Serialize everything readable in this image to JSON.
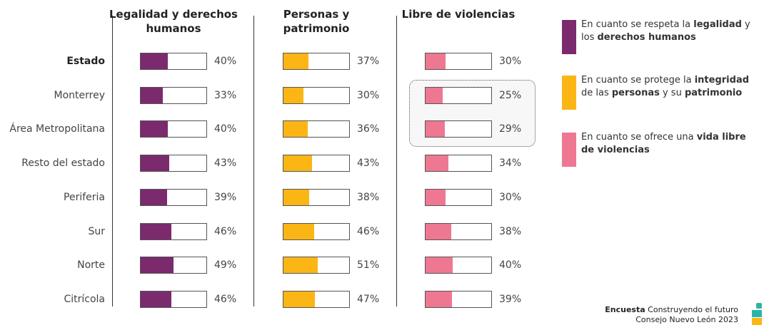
{
  "chart_data": {
    "type": "bar",
    "categories": [
      "Estado",
      "Monterrey",
      "Área Metropolitana",
      "Resto del estado",
      "Periferia",
      "Sur",
      "Norte",
      "Citrícola"
    ],
    "xlim": [
      0,
      100
    ],
    "series": [
      {
        "name": "Legalidad y derechos humanos",
        "color": "#7b2a6e",
        "values": [
          40,
          33,
          40,
          43,
          39,
          46,
          49,
          46
        ],
        "value_labels": [
          "40%",
          "33%",
          "40%",
          "43%",
          "39%",
          "46%",
          "49%",
          "46%"
        ]
      },
      {
        "name": "Personas y patrimonio",
        "color": "#fbb615",
        "values": [
          37,
          30,
          36,
          43,
          38,
          46,
          51,
          47
        ],
        "value_labels": [
          "37%",
          "30%",
          "36%",
          "43%",
          "38%",
          "46%",
          "51%",
          "47%"
        ]
      },
      {
        "name": "Libre de violencias",
        "color": "#ee7891",
        "values": [
          30,
          25,
          29,
          34,
          30,
          38,
          40,
          39
        ],
        "value_labels": [
          "30%",
          "25%",
          "29%",
          "34%",
          "30%",
          "38%",
          "40%",
          "39%"
        ]
      }
    ],
    "legend": [
      [
        "En cuanto se respeta la ",
        "legalidad",
        " y los ",
        "derechos humanos"
      ],
      [
        "En cuanto se protege la ",
        "integridad",
        " de las ",
        "personas",
        " y su ",
        "patrimonio"
      ],
      [
        "En cuanto se ofrece una ",
        "vida libre de violencias"
      ]
    ]
  },
  "footer": {
    "bold": "Encuesta",
    "line1": " Construyendo el futuro",
    "line2": "Consejo Nuevo León 2023"
  }
}
